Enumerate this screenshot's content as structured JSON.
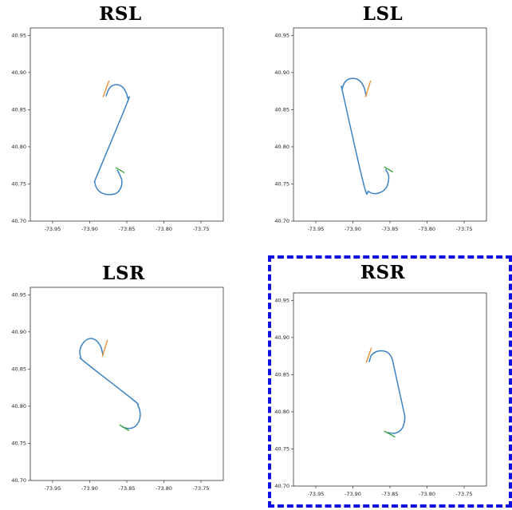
{
  "colors": {
    "path": "#3b82c4",
    "start_heading": "#f08a2c",
    "goal_heading": "#2ca02c",
    "highlight": "#1010e0"
  },
  "chart_data": [
    {
      "type": "line",
      "title": "RSL",
      "highlighted": false,
      "xlim": [
        -73.98,
        -73.72
      ],
      "ylim": [
        40.7,
        40.96
      ],
      "xticks": [
        "-73.95",
        "-73.90",
        "-73.85",
        "-73.80",
        "-73.75"
      ],
      "xtick_values": [
        -73.95,
        -73.9,
        -73.85,
        -73.8,
        -73.75
      ],
      "yticks": [
        "40.70",
        "40.75",
        "40.80",
        "40.85",
        "40.90",
        "40.95"
      ],
      "ytick_values": [
        40.7,
        40.75,
        40.8,
        40.85,
        40.9,
        40.95
      ],
      "path": {
        "x": [
          -73.878,
          -73.874,
          -73.868,
          -73.86,
          -73.853,
          -73.849,
          -73.85,
          -73.889,
          -73.893,
          -73.888,
          -73.878,
          -73.865,
          -73.858,
          -73.857,
          -73.863
        ],
        "y": [
          40.868,
          40.878,
          40.883,
          40.883,
          40.877,
          40.866,
          40.858,
          40.764,
          40.752,
          40.741,
          40.736,
          40.737,
          40.745,
          40.756,
          40.769
        ]
      },
      "start_heading": {
        "x": [
          -73.882,
          -73.874
        ],
        "y": [
          40.867,
          40.889
        ]
      },
      "goal_heading": {
        "x": [
          -73.865,
          -73.853
        ],
        "y": [
          40.772,
          40.765
        ]
      }
    },
    {
      "type": "line",
      "title": "LSL",
      "highlighted": false,
      "xlim": [
        -73.98,
        -73.72
      ],
      "ylim": [
        40.7,
        40.96
      ],
      "xticks": [
        "-73.95",
        "-73.90",
        "-73.85",
        "-73.80",
        "-73.75"
      ],
      "xtick_values": [
        -73.95,
        -73.9,
        -73.85,
        -73.8,
        -73.75
      ],
      "yticks": [
        "40.70",
        "40.75",
        "40.80",
        "40.85",
        "40.90",
        "40.95"
      ],
      "ytick_values": [
        40.7,
        40.75,
        40.8,
        40.85,
        40.9,
        40.95
      ],
      "path": {
        "x": [
          -73.882,
          -73.885,
          -73.891,
          -73.9,
          -73.909,
          -73.914,
          -73.913,
          -73.885,
          -73.879,
          -73.871,
          -73.862,
          -73.855,
          -73.852,
          -73.852,
          -73.856
        ],
        "y": [
          40.868,
          40.88,
          40.889,
          40.892,
          40.889,
          40.879,
          40.87,
          40.748,
          40.74,
          40.737,
          40.739,
          40.745,
          40.754,
          40.762,
          40.77
        ]
      },
      "start_heading": {
        "x": [
          -73.883,
          -73.876
        ],
        "y": [
          40.867,
          40.889
        ]
      },
      "goal_heading": {
        "x": [
          -73.858,
          -73.846
        ],
        "y": [
          40.773,
          40.766
        ]
      }
    },
    {
      "type": "line",
      "title": "LSR",
      "highlighted": false,
      "xlim": [
        -73.98,
        -73.72
      ],
      "ylim": [
        40.7,
        40.96
      ],
      "xticks": [
        "-73.95",
        "-73.90",
        "-73.85",
        "-73.80",
        "-73.75"
      ],
      "xtick_values": [
        -73.95,
        -73.9,
        -73.85,
        -73.8,
        -73.75
      ],
      "yticks": [
        "40.70",
        "40.75",
        "40.80",
        "40.85",
        "40.90",
        "40.95"
      ],
      "ytick_values": [
        40.7,
        40.75,
        40.8,
        40.85,
        40.9,
        40.95
      ],
      "path": {
        "x": [
          -73.882,
          -73.885,
          -73.892,
          -73.9,
          -73.908,
          -73.913,
          -73.912,
          -73.906,
          -73.842,
          -73.835,
          -73.832,
          -73.834,
          -73.84,
          -73.848,
          -73.856
        ],
        "y": [
          40.868,
          40.88,
          40.889,
          40.891,
          40.886,
          40.876,
          40.866,
          40.859,
          40.809,
          40.801,
          40.79,
          40.779,
          40.772,
          40.77,
          40.772
        ]
      },
      "start_heading": {
        "x": [
          -73.883,
          -73.876
        ],
        "y": [
          40.867,
          40.889
        ]
      },
      "goal_heading": {
        "x": [
          -73.86,
          -73.847
        ],
        "y": [
          40.775,
          40.767
        ]
      }
    },
    {
      "type": "line",
      "title": "RSR",
      "highlighted": true,
      "xlim": [
        -73.98,
        -73.72
      ],
      "ylim": [
        40.7,
        40.96
      ],
      "xticks": [
        "-73.95",
        "-73.90",
        "-73.85",
        "-73.80",
        "-73.75"
      ],
      "xtick_values": [
        -73.95,
        -73.9,
        -73.85,
        -73.8,
        -73.75
      ],
      "yticks": [
        "40.70",
        "40.75",
        "40.80",
        "40.85",
        "40.90",
        "40.95"
      ],
      "ytick_values": [
        40.7,
        40.75,
        40.8,
        40.85,
        40.9,
        40.95
      ],
      "path": {
        "x": [
          -73.878,
          -73.875,
          -73.868,
          -73.86,
          -73.852,
          -73.847,
          -73.845,
          -73.832,
          -73.83,
          -73.832,
          -73.837,
          -73.844,
          -73.853
        ],
        "y": [
          40.867,
          40.876,
          40.881,
          40.882,
          40.879,
          40.871,
          40.862,
          40.803,
          40.792,
          40.781,
          40.774,
          40.771,
          40.772
        ]
      },
      "start_heading": {
        "x": [
          -73.882,
          -73.875
        ],
        "y": [
          40.866,
          40.886
        ]
      },
      "goal_heading": {
        "x": [
          -73.858,
          -73.843
        ],
        "y": [
          40.774,
          40.766
        ]
      }
    }
  ]
}
